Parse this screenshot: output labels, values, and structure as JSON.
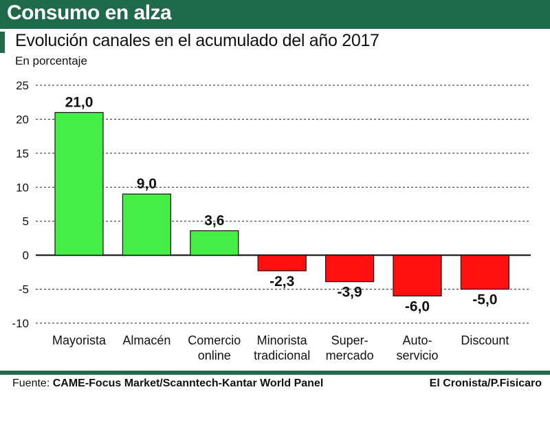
{
  "header": {
    "title": "Consumo en alza"
  },
  "chart_data": {
    "type": "bar",
    "title": "Evolución canales en el acumulado del año 2017",
    "subtitle": "En porcentaje",
    "categories": [
      [
        "Mayorista"
      ],
      [
        "Almacén"
      ],
      [
        "Comercio",
        "online"
      ],
      [
        "Minorista",
        "tradicional"
      ],
      [
        "Super-",
        "mercado"
      ],
      [
        "Auto-",
        "servicio"
      ],
      [
        "Discount"
      ]
    ],
    "values": [
      21.0,
      9.0,
      3.6,
      -2.3,
      -3.9,
      -6.0,
      -5.0
    ],
    "value_labels": [
      "21,0",
      "9,0",
      "3,6",
      "-2,3",
      "-3,9",
      "-6,0",
      "-5,0"
    ],
    "yticks": [
      25,
      20,
      15,
      10,
      5,
      0,
      -5,
      -10
    ],
    "ylim": [
      -10,
      25
    ],
    "xlabel": "",
    "ylabel": "",
    "grid": true,
    "colors": {
      "positive": "#44ee44",
      "negative": "#ff1010"
    }
  },
  "footer": {
    "source_label": "Fuente:",
    "source": "CAME-Focus Market/Scanntech-Kantar World Panel",
    "credit": "El Cronista/P.Fisicaro"
  }
}
